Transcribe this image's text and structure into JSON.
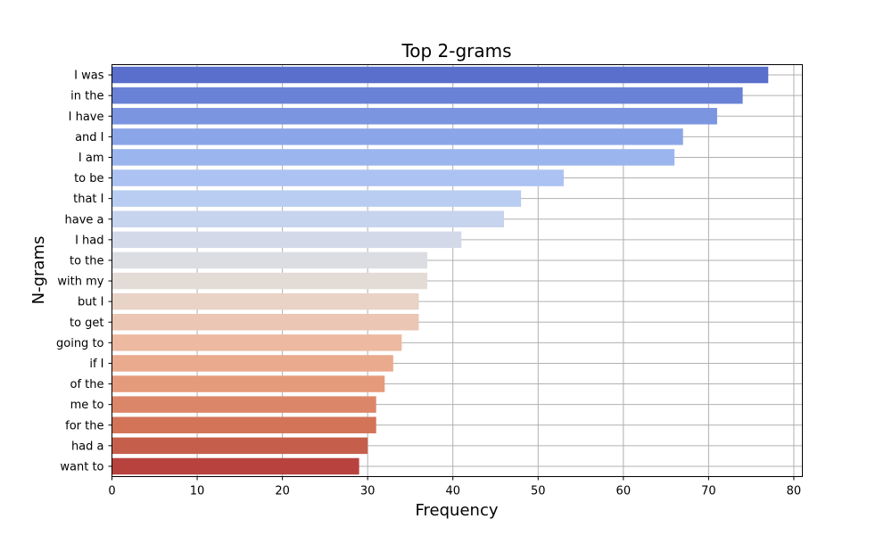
{
  "chart_data": {
    "type": "bar",
    "orientation": "horizontal",
    "title": "Top 2-grams",
    "xlabel": "Frequency",
    "ylabel": "N-grams",
    "xlim": [
      0,
      81
    ],
    "xticks": [
      0,
      10,
      20,
      30,
      40,
      50,
      60,
      70,
      80
    ],
    "grid": true,
    "colormap": "coolwarm",
    "categories": [
      "I was",
      "in the",
      "I have",
      "and I",
      "I am",
      "to be",
      "that I",
      "have a",
      "I had",
      "to the",
      "with my",
      "but I",
      "to get",
      "going to",
      "if I",
      "of the",
      "me to",
      "for the",
      "had a",
      "want to"
    ],
    "values": [
      77,
      74,
      71,
      67,
      66,
      53,
      48,
      46,
      41,
      37,
      37,
      36,
      36,
      34,
      33,
      32,
      31,
      31,
      30,
      29
    ],
    "colors": [
      "#5a6fcb",
      "#6a82d6",
      "#7b95e0",
      "#8ba6e8",
      "#9bb5ef",
      "#abc2f2",
      "#b9cdf2",
      "#c7d4ee",
      "#d3d9e8",
      "#dcdde2",
      "#e3dbd6",
      "#e9d2c6",
      "#ecc6b4",
      "#edb9a1",
      "#eaaa8e",
      "#e59a7c",
      "#dc8669",
      "#d37459",
      "#c55f4b",
      "#b8423e"
    ]
  }
}
